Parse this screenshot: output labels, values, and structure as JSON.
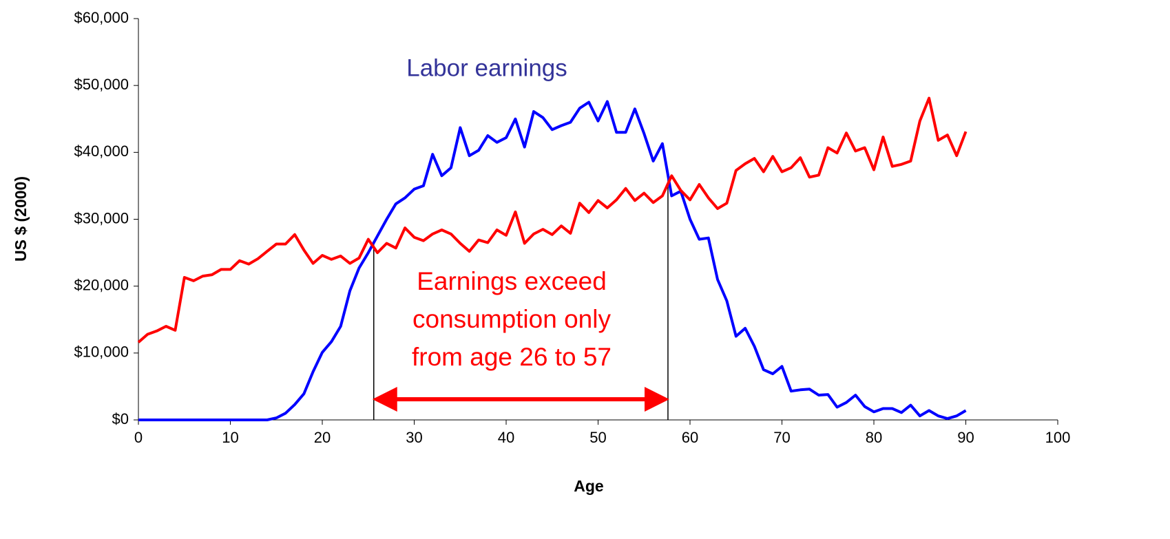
{
  "chart_data": {
    "type": "line",
    "xlabel": "Age",
    "ylabel": "US $ (2000)",
    "x": [
      0,
      1,
      2,
      3,
      4,
      5,
      6,
      7,
      8,
      9,
      10,
      11,
      12,
      13,
      14,
      15,
      16,
      17,
      18,
      19,
      20,
      21,
      22,
      23,
      24,
      25,
      26,
      27,
      28,
      29,
      30,
      31,
      32,
      33,
      34,
      35,
      36,
      37,
      38,
      39,
      40,
      41,
      42,
      43,
      44,
      45,
      46,
      47,
      48,
      49,
      50,
      51,
      52,
      53,
      54,
      55,
      56,
      57,
      58,
      59,
      60,
      61,
      62,
      63,
      64,
      65,
      66,
      67,
      68,
      69,
      70,
      71,
      72,
      73,
      74,
      75,
      76,
      77,
      78,
      79,
      80,
      81,
      82,
      83,
      84,
      85,
      86,
      87,
      88,
      89,
      90
    ],
    "series": [
      {
        "name": "Labor earnings",
        "color": "#0000ff",
        "label_color": "#333399",
        "values": [
          0,
          0,
          0,
          0,
          0,
          0,
          0,
          0,
          0,
          0,
          0,
          0,
          0,
          0,
          0,
          300,
          1000,
          2300,
          3900,
          7200,
          10100,
          11700,
          14000,
          19300,
          22700,
          25000,
          27500,
          30000,
          32300,
          33200,
          34500,
          35000,
          39700,
          36500,
          37700,
          43700,
          39500,
          40300,
          42500,
          41500,
          42200,
          45000,
          40800,
          46100,
          45200,
          43400,
          44000,
          44500,
          46600,
          47500,
          44700,
          47600,
          43000,
          43000,
          46500,
          42800,
          38700,
          41300,
          33500,
          34200,
          30000,
          27000,
          27200,
          21000,
          17800,
          12500,
          13700,
          11000,
          7500,
          6900,
          8000,
          4300,
          4500,
          4600,
          3700,
          3800,
          1900,
          2600,
          3700,
          2000,
          1200,
          1700,
          1700,
          1100,
          2200,
          600,
          1400,
          600,
          200,
          600,
          1400
        ]
      },
      {
        "color": "#ff0000",
        "values": [
          11600,
          12800,
          13300,
          14000,
          13400,
          21300,
          20800,
          21500,
          21700,
          22500,
          22500,
          23800,
          23300,
          24100,
          25200,
          26300,
          26300,
          27700,
          25400,
          23400,
          24600,
          24000,
          24500,
          23400,
          24200,
          27000,
          25000,
          26400,
          25700,
          28700,
          27300,
          26800,
          27800,
          28400,
          27800,
          26400,
          25200,
          26900,
          26500,
          28400,
          27600,
          31100,
          26400,
          27800,
          28500,
          27700,
          29000,
          27900,
          32400,
          31000,
          32800,
          31700,
          32900,
          34600,
          32800,
          33900,
          32500,
          33500,
          36500,
          34300,
          32900,
          35200,
          33200,
          31600,
          32400,
          37300,
          38300,
          39100,
          37100,
          39400,
          37100,
          37700,
          39200,
          36300,
          36600,
          40700,
          39900,
          42900,
          40200,
          40700,
          37400,
          42300,
          37900,
          38200,
          38700,
          44700,
          48100,
          41800,
          42600,
          39500,
          43100
        ]
      }
    ],
    "annotation": {
      "lines": [
        "Earnings exceed",
        "consumption only",
        "from age 26 to 57"
      ],
      "color": "#ff0000",
      "span": [
        25.6,
        57.6
      ]
    },
    "xlim": [
      0,
      100
    ],
    "xticks": [
      0,
      10,
      20,
      30,
      40,
      50,
      60,
      70,
      80,
      90,
      100
    ],
    "ylim": [
      0,
      60000
    ],
    "yticks": [
      {
        "value": 0,
        "label": "$0"
      },
      {
        "value": 10000,
        "label": "$10,000"
      },
      {
        "value": 20000,
        "label": "$20,000"
      },
      {
        "value": 30000,
        "label": "$30,000"
      },
      {
        "value": 40000,
        "label": "$40,000"
      },
      {
        "value": 50000,
        "label": "$50,000"
      },
      {
        "value": 60000,
        "label": "$60,000"
      }
    ],
    "grid": false
  }
}
